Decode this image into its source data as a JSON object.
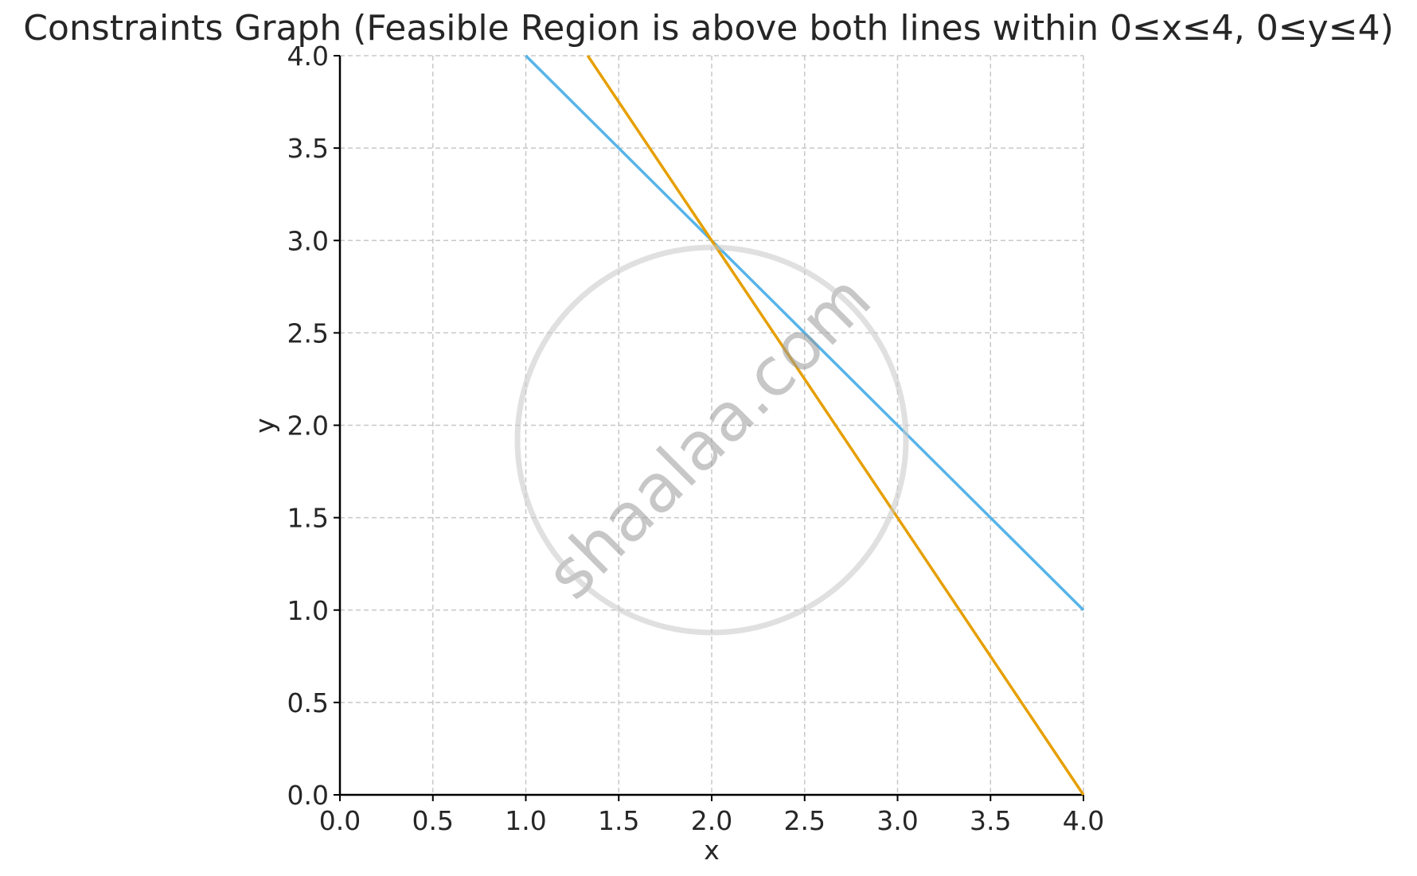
{
  "chart_data": {
    "type": "line",
    "title": "Constraints Graph (Feasible Region is above both lines within 0≤x≤4, 0≤y≤4)",
    "xlabel": "x",
    "ylabel": "y",
    "xlim": [
      0,
      4
    ],
    "ylim": [
      0,
      4
    ],
    "xticks": [
      "0.0",
      "0.5",
      "1.0",
      "1.5",
      "2.0",
      "2.5",
      "3.0",
      "3.5",
      "4.0"
    ],
    "yticks": [
      "0.0",
      "0.5",
      "1.0",
      "1.5",
      "2.0",
      "2.5",
      "3.0",
      "3.5",
      "4.0"
    ],
    "grid": true,
    "legend": "none",
    "series": [
      {
        "color": "#56b4e9",
        "x": [
          1,
          4
        ],
        "y": [
          4,
          1
        ]
      },
      {
        "color": "#e69f00",
        "x": [
          1.3333,
          4
        ],
        "y": [
          4,
          0
        ]
      }
    ]
  },
  "watermark": {
    "text": "shaalaa.com"
  }
}
